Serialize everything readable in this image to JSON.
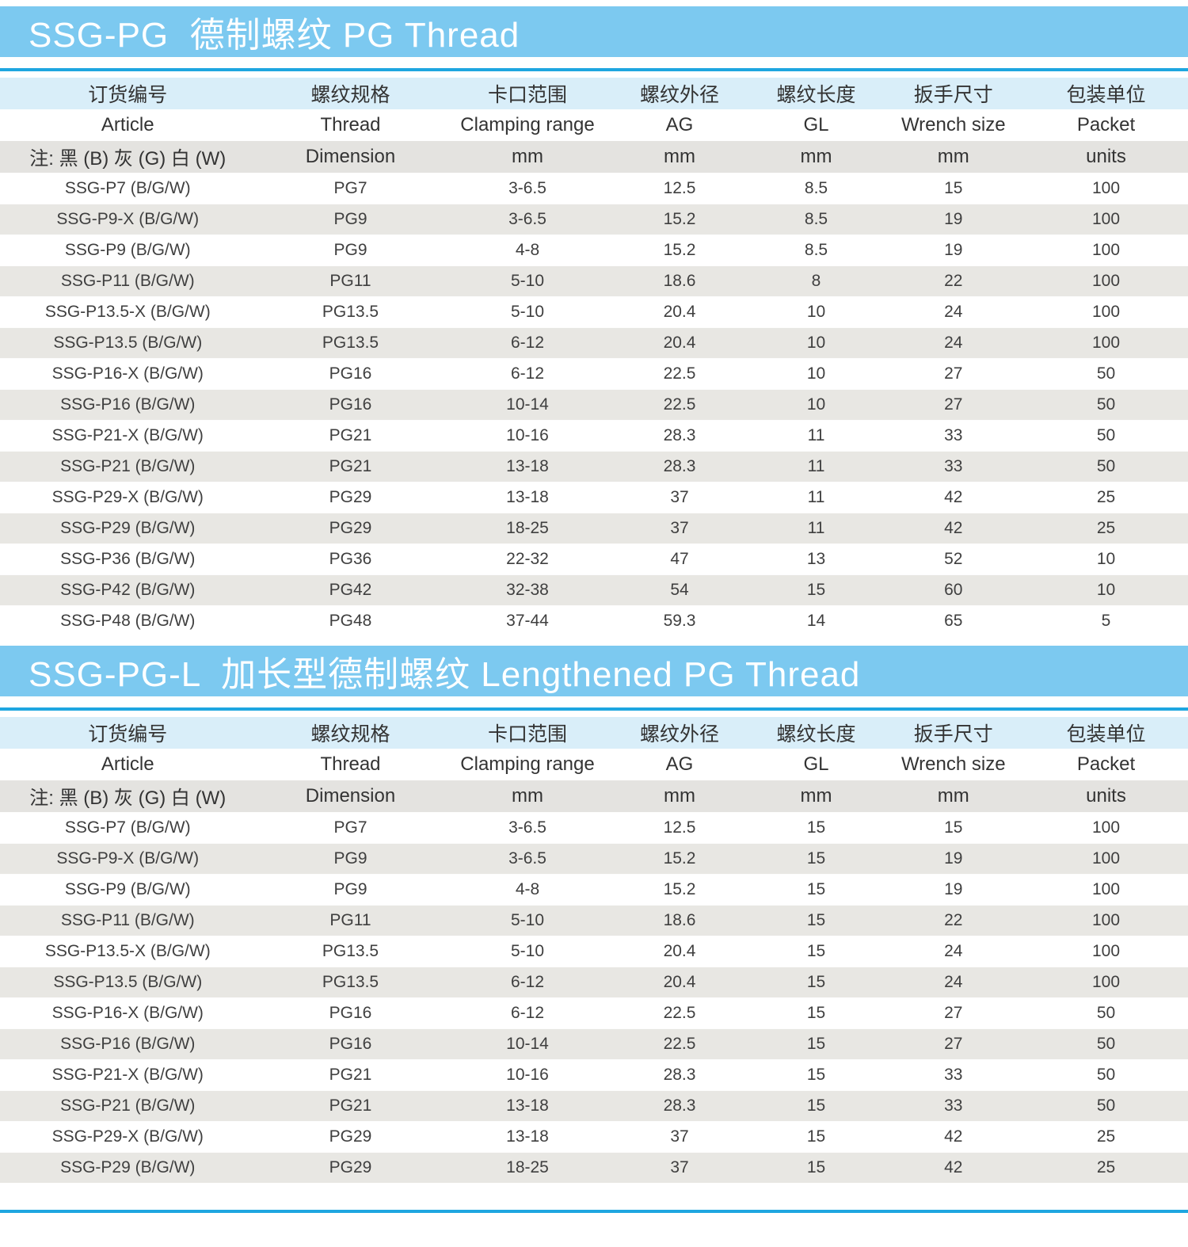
{
  "theme": {
    "title_bar_bg": "#7cc9f0",
    "title_text": "#ffffff",
    "rule_blue": "#1ea6e0",
    "header_zh_bg": "#d9eef9",
    "header_unit_bg": "#e4e3e0",
    "row_stripe_bg": "#e8e7e3",
    "body_text": "#3f3f3f"
  },
  "columns": {
    "zh": [
      "订货编号",
      "螺纹规格",
      "卡口范围",
      "螺纹外径",
      "螺纹长度",
      "扳手尺寸",
      "包装单位"
    ],
    "en": [
      "Article",
      "Thread",
      "Clamping range",
      "AG",
      "GL",
      "Wrench size",
      "Packet"
    ],
    "unit": [
      "注: 黑 (B) 灰 (G) 白 (W)",
      "Dimension",
      "mm",
      "mm",
      "mm",
      "mm",
      "units"
    ]
  },
  "sections": [
    {
      "title": "SSG-PG  德制螺纹 PG Thread",
      "rows": [
        [
          "SSG-P7 (B/G/W)",
          "PG7",
          "3-6.5",
          "12.5",
          "8.5",
          "15",
          "100"
        ],
        [
          "SSG-P9-X (B/G/W)",
          "PG9",
          "3-6.5",
          "15.2",
          "8.5",
          "19",
          "100"
        ],
        [
          "SSG-P9 (B/G/W)",
          "PG9",
          "4-8",
          "15.2",
          "8.5",
          "19",
          "100"
        ],
        [
          "SSG-P11 (B/G/W)",
          "PG11",
          "5-10",
          "18.6",
          "8",
          "22",
          "100"
        ],
        [
          "SSG-P13.5-X (B/G/W)",
          "PG13.5",
          "5-10",
          "20.4",
          "10",
          "24",
          "100"
        ],
        [
          "SSG-P13.5 (B/G/W)",
          "PG13.5",
          "6-12",
          "20.4",
          "10",
          "24",
          "100"
        ],
        [
          "SSG-P16-X (B/G/W)",
          "PG16",
          "6-12",
          "22.5",
          "10",
          "27",
          "50"
        ],
        [
          "SSG-P16 (B/G/W)",
          "PG16",
          "10-14",
          "22.5",
          "10",
          "27",
          "50"
        ],
        [
          "SSG-P21-X (B/G/W)",
          "PG21",
          "10-16",
          "28.3",
          "11",
          "33",
          "50"
        ],
        [
          "SSG-P21 (B/G/W)",
          "PG21",
          "13-18",
          "28.3",
          "11",
          "33",
          "50"
        ],
        [
          "SSG-P29-X (B/G/W)",
          "PG29",
          "13-18",
          "37",
          "11",
          "42",
          "25"
        ],
        [
          "SSG-P29 (B/G/W)",
          "PG29",
          "18-25",
          "37",
          "11",
          "42",
          "25"
        ],
        [
          "SSG-P36 (B/G/W)",
          "PG36",
          "22-32",
          "47",
          "13",
          "52",
          "10"
        ],
        [
          "SSG-P42 (B/G/W)",
          "PG42",
          "32-38",
          "54",
          "15",
          "60",
          "10"
        ],
        [
          "SSG-P48 (B/G/W)",
          "PG48",
          "37-44",
          "59.3",
          "14",
          "65",
          "5"
        ]
      ]
    },
    {
      "title": "SSG-PG-L  加长型德制螺纹 Lengthened PG Thread",
      "rows": [
        [
          "SSG-P7 (B/G/W)",
          "PG7",
          "3-6.5",
          "12.5",
          "15",
          "15",
          "100"
        ],
        [
          "SSG-P9-X (B/G/W)",
          "PG9",
          "3-6.5",
          "15.2",
          "15",
          "19",
          "100"
        ],
        [
          "SSG-P9 (B/G/W)",
          "PG9",
          "4-8",
          "15.2",
          "15",
          "19",
          "100"
        ],
        [
          "SSG-P11 (B/G/W)",
          "PG11",
          "5-10",
          "18.6",
          "15",
          "22",
          "100"
        ],
        [
          "SSG-P13.5-X (B/G/W)",
          "PG13.5",
          "5-10",
          "20.4",
          "15",
          "24",
          "100"
        ],
        [
          "SSG-P13.5 (B/G/W)",
          "PG13.5",
          "6-12",
          "20.4",
          "15",
          "24",
          "100"
        ],
        [
          "SSG-P16-X (B/G/W)",
          "PG16",
          "6-12",
          "22.5",
          "15",
          "27",
          "50"
        ],
        [
          "SSG-P16 (B/G/W)",
          "PG16",
          "10-14",
          "22.5",
          "15",
          "27",
          "50"
        ],
        [
          "SSG-P21-X (B/G/W)",
          "PG21",
          "10-16",
          "28.3",
          "15",
          "33",
          "50"
        ],
        [
          "SSG-P21 (B/G/W)",
          "PG21",
          "13-18",
          "28.3",
          "15",
          "33",
          "50"
        ],
        [
          "SSG-P29-X (B/G/W)",
          "PG29",
          "13-18",
          "37",
          "15",
          "42",
          "25"
        ],
        [
          "SSG-P29 (B/G/W)",
          "PG29",
          "18-25",
          "37",
          "15",
          "42",
          "25"
        ]
      ]
    }
  ]
}
